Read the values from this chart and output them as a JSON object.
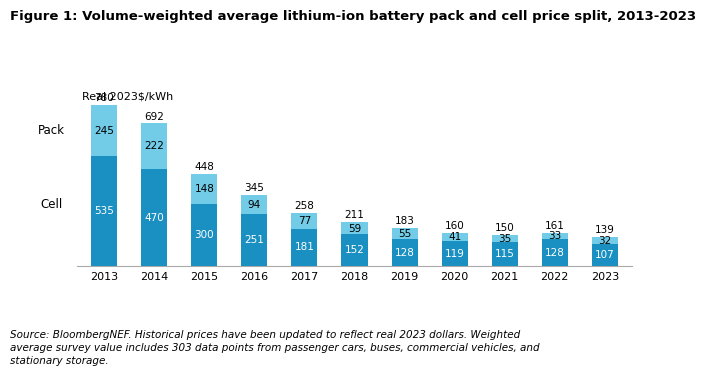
{
  "title": "Figure 1: Volume-weighted average lithium-ion battery pack and cell price split, 2013-2023",
  "ylabel": "Real 2023$/kWh",
  "years": [
    "2013",
    "2014",
    "2015",
    "2016",
    "2017",
    "2018",
    "2019",
    "2020",
    "2021",
    "2022",
    "2023"
  ],
  "cell_values": [
    535,
    470,
    300,
    251,
    181,
    152,
    128,
    119,
    115,
    128,
    107
  ],
  "pack_values": [
    245,
    222,
    148,
    94,
    77,
    59,
    55,
    41,
    35,
    33,
    32
  ],
  "total_values": [
    780,
    692,
    448,
    345,
    258,
    211,
    183,
    160,
    150,
    161,
    139
  ],
  "cell_color": "#1a8fc1",
  "pack_color": "#72cce8",
  "cell_label": "Cell",
  "pack_label": "Pack",
  "source_text": "Source: BloombergNEF. Historical prices have been updated to reflect real 2023 dollars. Weighted\naverage survey value includes 303 data points from passenger cars, buses, commercial vehicles, and\nstationary storage.",
  "bg_color": "#ffffff",
  "label_fontsize": 7.5,
  "tick_fontsize": 8,
  "title_fontsize": 9.5,
  "ylabel_fontsize": 8,
  "source_fontsize": 7.5,
  "bar_width": 0.52
}
